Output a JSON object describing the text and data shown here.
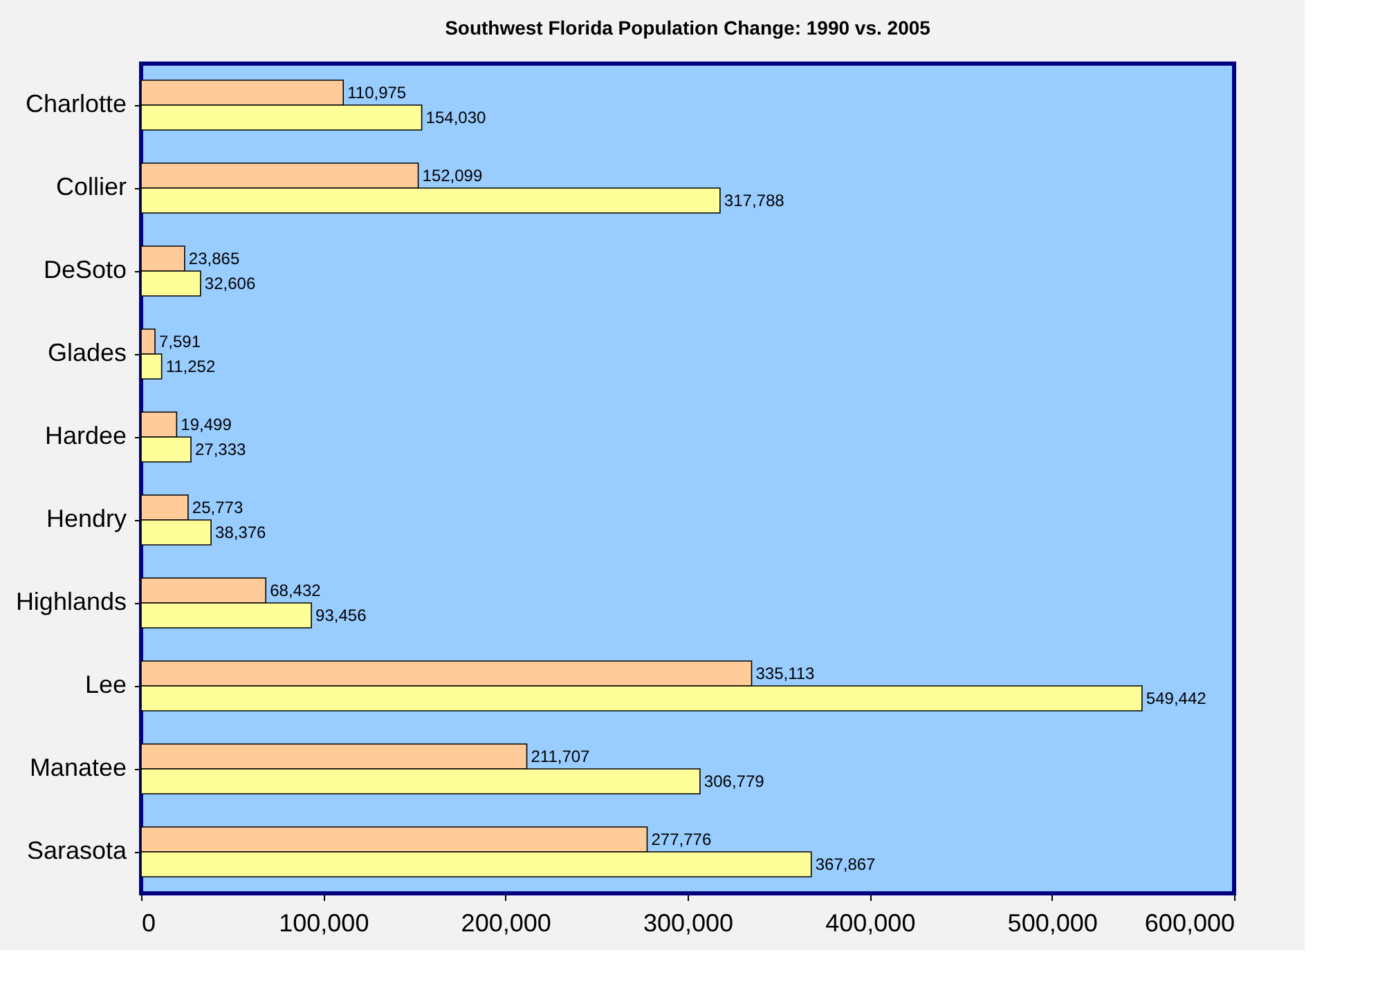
{
  "chart_data": {
    "type": "bar",
    "orientation": "horizontal",
    "title": "Southwest Florida Population Change: 1990 vs. 2005",
    "categories": [
      "Charlotte",
      "Collier",
      "DeSoto",
      "Glades",
      "Hardee",
      "Hendry",
      "Highlands",
      "Lee",
      "Manatee",
      "Sarasota"
    ],
    "series": [
      {
        "color": "#ffcc99",
        "values": [
          110975,
          152099,
          23865,
          7591,
          19499,
          25773,
          68432,
          335113,
          211707,
          277776
        ],
        "value_labels": [
          "110,975",
          "152,099",
          "23,865",
          "7,591",
          "19,499",
          "25,773",
          "68,432",
          "335,113",
          "211,707",
          "277,776"
        ]
      },
      {
        "color": "#ffff99",
        "values": [
          154030,
          317788,
          32606,
          11252,
          27333,
          38376,
          93456,
          549442,
          306779,
          367867
        ],
        "value_labels": [
          "154,030",
          "317,788",
          "32,606",
          "11,252",
          "27,333",
          "38,376",
          "93,456",
          "549,442",
          "306,779",
          "367,867"
        ]
      }
    ],
    "xlim": [
      0,
      600000
    ],
    "xticks": [
      0,
      {
        "value": 100000,
        "label": "100,000"
      },
      {
        "value": 200000,
        "label": "200,000"
      },
      {
        "value": 300000,
        "label": "300,000"
      },
      {
        "value": 400000,
        "label": "400,000"
      },
      {
        "value": 500000,
        "label": "500,000"
      },
      {
        "value": 600000,
        "label": "600,000"
      }
    ],
    "grid": false,
    "legend": false
  }
}
